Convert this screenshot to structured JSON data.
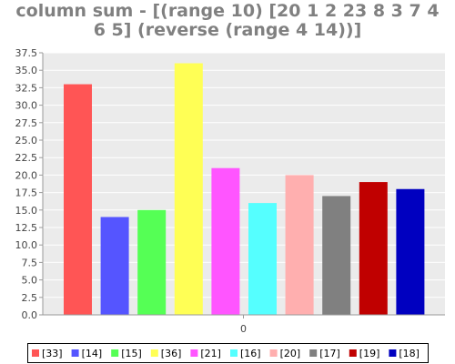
{
  "title_line1": "column sum - [(range 10) [20 1 2 23 8 3 7 4",
  "title_line2": "6 5] (reverse (range 4 14))]",
  "chart_data": {
    "type": "bar",
    "title": "column sum - [(range 10) [20 1 2 23 8 3 7 4 6 5] (reverse (range 4 14))]",
    "xlabel": "",
    "ylabel": "",
    "categories": [
      "0"
    ],
    "ylim": [
      0,
      37.5
    ],
    "yticks": [
      "0.0",
      "2.5",
      "5.0",
      "7.5",
      "10.0",
      "12.5",
      "15.0",
      "17.5",
      "20.0",
      "22.5",
      "25.0",
      "27.5",
      "30.0",
      "32.5",
      "35.0",
      "37.5"
    ],
    "grid": true,
    "legend_position": "bottom",
    "series": [
      {
        "name": "[33]",
        "values": [
          33
        ],
        "color": "#FF5555"
      },
      {
        "name": "[14]",
        "values": [
          14
        ],
        "color": "#5555FF"
      },
      {
        "name": "[15]",
        "values": [
          15
        ],
        "color": "#55FF55"
      },
      {
        "name": "[36]",
        "values": [
          36
        ],
        "color": "#FFFF55"
      },
      {
        "name": "[21]",
        "values": [
          21
        ],
        "color": "#FF55FF"
      },
      {
        "name": "[16]",
        "values": [
          16
        ],
        "color": "#55FFFF"
      },
      {
        "name": "[20]",
        "values": [
          20
        ],
        "color": "#FFAFAF"
      },
      {
        "name": "[17]",
        "values": [
          17
        ],
        "color": "#808080"
      },
      {
        "name": "[19]",
        "values": [
          19
        ],
        "color": "#C00000"
      },
      {
        "name": "[18]",
        "values": [
          18
        ],
        "color": "#0000C0"
      }
    ]
  }
}
